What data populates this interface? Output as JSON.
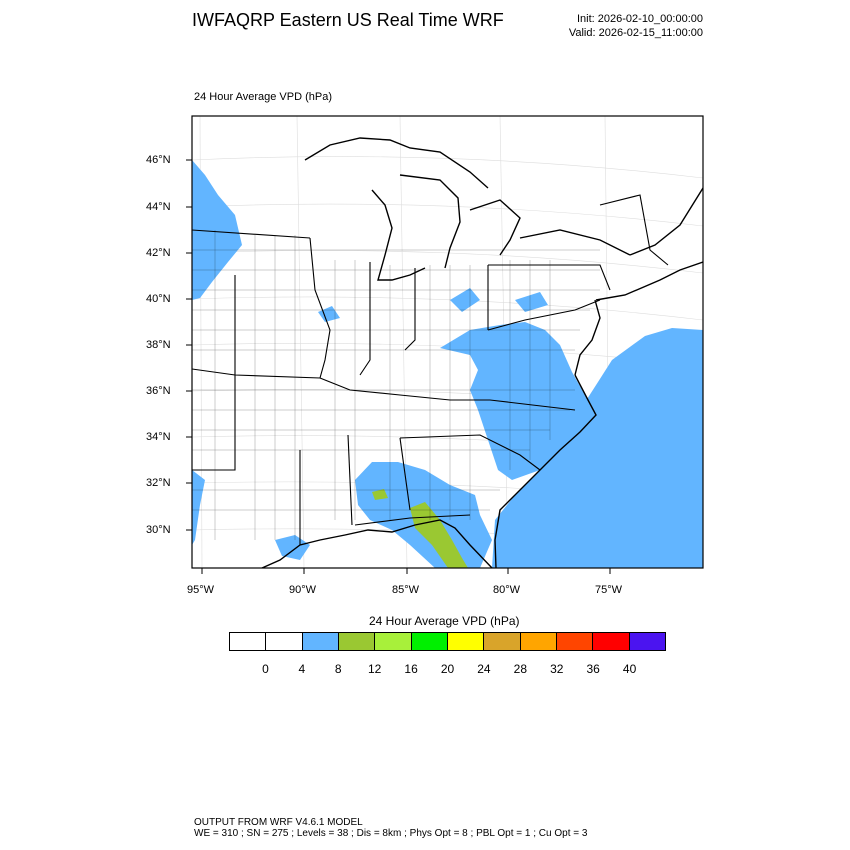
{
  "header": {
    "title": "IWFAQRP Eastern US Real Time WRF",
    "init": "Init: 2026-02-10_00:00:00",
    "valid": "Valid: 2026-02-15_11:00:00"
  },
  "plot": {
    "subtitle": "24 Hour Average VPD   (hPa)",
    "lat_labels": [
      "46°N",
      "44°N",
      "42°N",
      "40°N",
      "38°N",
      "36°N",
      "34°N",
      "32°N",
      "30°N"
    ],
    "lon_labels": [
      "95°W",
      "90°W",
      "85°W",
      "80°W",
      "75°W"
    ]
  },
  "colorbar": {
    "title": "24 Hour Average VPD  (hPa)",
    "colors": [
      "#ffffff",
      "#ffffff",
      "#62b5ff",
      "#9ac832",
      "#a8f03a",
      "#00f000",
      "#ffff00",
      "#d9a42a",
      "#ffa500",
      "#ff4500",
      "#ff0000",
      "#4b14f0"
    ],
    "labels": [
      "0",
      "4",
      "8",
      "12",
      "16",
      "20",
      "24",
      "28",
      "32",
      "36",
      "40"
    ]
  },
  "footer": {
    "line1": "OUTPUT FROM WRF V4.6.1 MODEL",
    "line2": "WE = 310 ; SN = 275 ; Levels = 38 ; Dis = 8km ; Phys Opt = 8 ; PBL Opt = 1 ; Cu Opt = 3"
  }
}
